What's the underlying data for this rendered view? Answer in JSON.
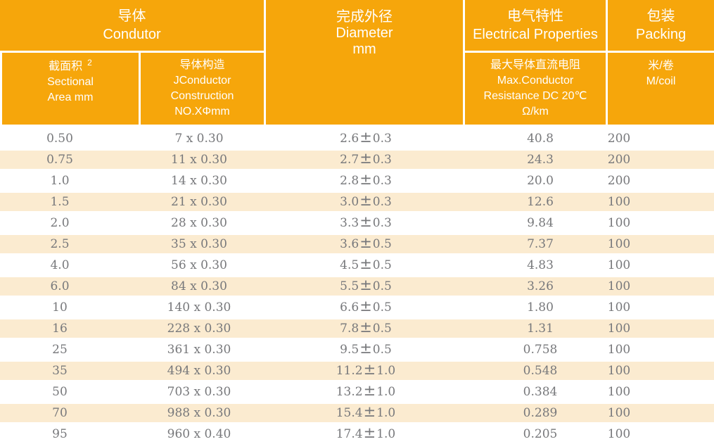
{
  "table": {
    "header": {
      "conductor": {
        "zh": "导体",
        "en": "Condutor"
      },
      "sectional_area": {
        "zh": "截面积",
        "sup": "2",
        "en_line1": "Sectional",
        "en_line2": "Area mm"
      },
      "construction": {
        "zh": "导体构造",
        "en_line1": "JConductor",
        "en_line2": "Construction",
        "en_line3": "NO.XΦmm"
      },
      "diameter": {
        "zh": "完成外径",
        "en": "Diameter",
        "unit": "mm"
      },
      "electrical": {
        "zh": "电气特性",
        "en": "Electrical Properties"
      },
      "resistance": {
        "zh": "最大导体直流电阻",
        "en_line1": "Max.Conductor",
        "en_line2": "Resistance DC 20℃",
        "en_line3": "Ω/km"
      },
      "packing": {
        "zh": "包装",
        "en": "Packing"
      },
      "m_per_coil": {
        "zh": "米/卷",
        "en": "M/coil"
      }
    },
    "plus_minus": "±",
    "rows": [
      {
        "area": "0.50",
        "construction": "7 x 0.30",
        "diameter": "2.6",
        "tolerance": "0.3",
        "resistance": "40.8",
        "packing": "200"
      },
      {
        "area": "0.75",
        "construction": "11 x 0.30",
        "diameter": "2.7",
        "tolerance": "0.3",
        "resistance": "24.3",
        "packing": "200"
      },
      {
        "area": "1.0",
        "construction": "14 x 0.30",
        "diameter": "2.8",
        "tolerance": "0.3",
        "resistance": "20.0",
        "packing": "200"
      },
      {
        "area": "1.5",
        "construction": "21 x 0.30",
        "diameter": "3.0",
        "tolerance": "0.3",
        "resistance": "12.6",
        "packing": "100"
      },
      {
        "area": "2.0",
        "construction": "28 x 0.30",
        "diameter": "3.3",
        "tolerance": "0.3",
        "resistance": "9.84",
        "packing": "100"
      },
      {
        "area": "2.5",
        "construction": "35 x 0.30",
        "diameter": "3.6",
        "tolerance": "0.5",
        "resistance": "7.37",
        "packing": "100"
      },
      {
        "area": "4.0",
        "construction": "56 x 0.30",
        "diameter": "4.5",
        "tolerance": "0.5",
        "resistance": "4.83",
        "packing": "100"
      },
      {
        "area": "6.0",
        "construction": "84 x 0.30",
        "diameter": "5.5",
        "tolerance": "0.5",
        "resistance": "3.26",
        "packing": "100"
      },
      {
        "area": "10",
        "construction": "140 x 0.30",
        "diameter": "6.6",
        "tolerance": "0.5",
        "resistance": "1.80",
        "packing": "100"
      },
      {
        "area": "16",
        "construction": "228 x 0.30",
        "diameter": "7.8",
        "tolerance": "0.5",
        "resistance": "1.31",
        "packing": "100"
      },
      {
        "area": "25",
        "construction": "361 x 0.30",
        "diameter": "9.5",
        "tolerance": "0.5",
        "resistance": "0.758",
        "packing": "100"
      },
      {
        "area": "35",
        "construction": "494 x 0.30",
        "diameter": "11.2",
        "tolerance": "1.0",
        "resistance": "0.548",
        "packing": "100"
      },
      {
        "area": "50",
        "construction": "703 x 0.30",
        "diameter": "13.2",
        "tolerance": "1.0",
        "resistance": "0.384",
        "packing": "100"
      },
      {
        "area": "70",
        "construction": "988 x 0.30",
        "diameter": "15.4",
        "tolerance": "1.0",
        "resistance": "0.289",
        "packing": "100"
      },
      {
        "area": "95",
        "construction": "960 x 0.40",
        "diameter": "17.4",
        "tolerance": "1.0",
        "resistance": "0.205",
        "packing": "100"
      }
    ]
  },
  "colors": {
    "header_orange": "#F6A60B",
    "row_cream": "#FBEBD0",
    "data_text": "#77787B",
    "header_text": "#FFFFFF"
  }
}
